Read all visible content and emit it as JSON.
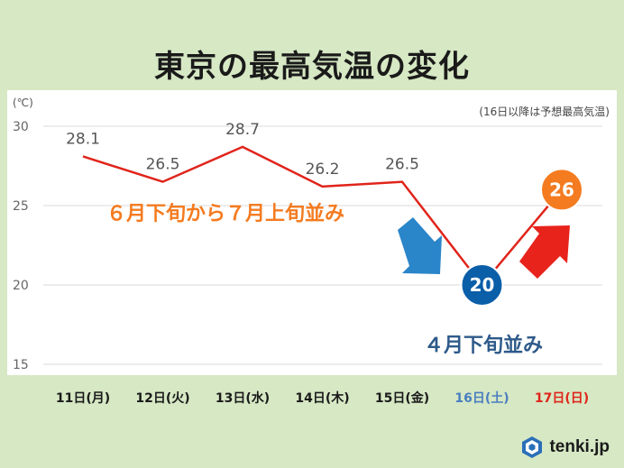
{
  "title": "東京の最高気温の変化",
  "unit_label": "(℃)",
  "note": "(16日以降は予想最高気温)",
  "annotation_warm": "６月下旬から７月上旬並み",
  "annotation_cool": "４月下旬並み",
  "logo_text": "tenki.jp",
  "colors": {
    "line": "#e0241b",
    "forecast_down_circle": "#0b5ea8",
    "forecast_up_circle": "#f47b20",
    "warm_text": "#f47b20",
    "cool_text": "#2e5a8a",
    "arrow_down": "#2a85c9",
    "arrow_up": "#e8231b",
    "sat_label": "#4a7ec0",
    "sun_label": "#e0241b"
  },
  "chart_data": {
    "type": "line",
    "categories": [
      "11日(月)",
      "12日(火)",
      "13日(水)",
      "14日(木)",
      "15日(金)",
      "16日(土)",
      "17日(日)"
    ],
    "values": [
      28.1,
      26.5,
      28.7,
      26.2,
      26.5,
      20,
      26
    ],
    "data_labels": [
      "28.1",
      "26.5",
      "28.7",
      "26.2",
      "26.5",
      "20",
      "26"
    ],
    "ylim": [
      15,
      30
    ],
    "yticks": [
      15,
      20,
      25,
      30
    ],
    "ylabel": "(℃)",
    "grid": true
  }
}
